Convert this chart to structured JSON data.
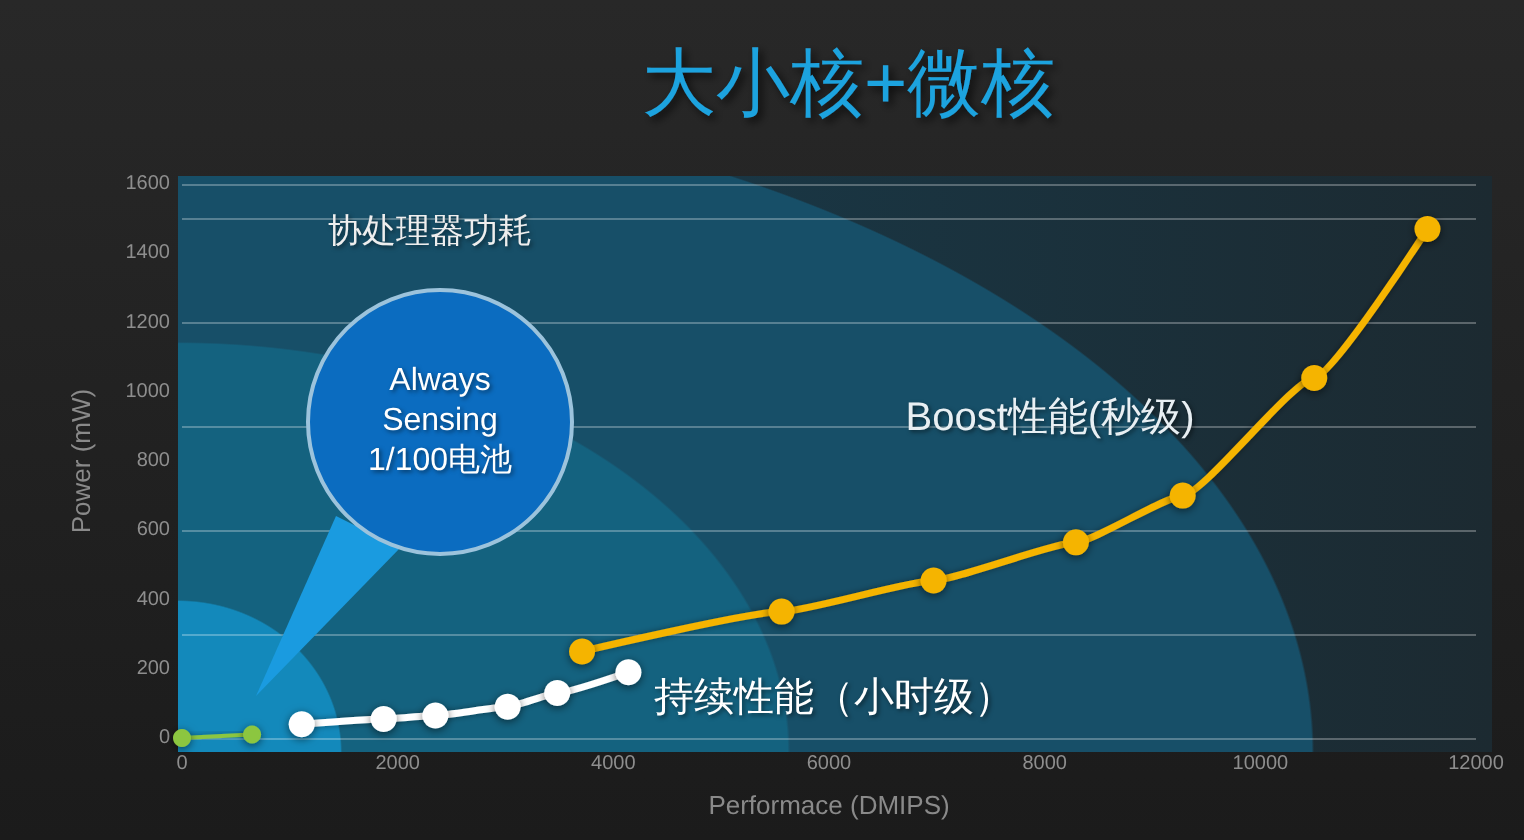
{
  "chart_data": {
    "type": "line",
    "title": "大小核+微核",
    "xlabel": "Performace (DMIPS)",
    "ylabel": "Power (mW)",
    "annotations": [
      "协处理器功耗",
      "Always Sensing 1/100电池",
      "Boost性能(秒级)",
      "持续性能（小时级）"
    ],
    "series": [
      {
        "color": "#8cc63f",
        "x": [
          0,
          650
        ],
        "values": [
          0,
          10
        ]
      },
      {
        "color": "#ffffff",
        "x": [
          1110,
          1870,
          2350,
          3020,
          3480,
          4140
        ],
        "values": [
          40,
          55,
          65,
          90,
          130,
          190
        ]
      },
      {
        "color": "#f5b400",
        "x": [
          3710,
          5560,
          6970,
          8290,
          9280,
          10500,
          11550
        ],
        "values": [
          250,
          365,
          455,
          565,
          700,
          1040,
          1470
        ]
      }
    ],
    "xlim": [
      0,
      12000
    ],
    "ylim": [
      0,
      1600
    ],
    "xticks": [
      0,
      2000,
      4000,
      6000,
      8000,
      10000,
      12000
    ],
    "yticks": [
      0,
      200,
      400,
      600,
      800,
      1000,
      1200,
      1400,
      1600
    ],
    "grid": "y",
    "marker": "circle"
  }
}
